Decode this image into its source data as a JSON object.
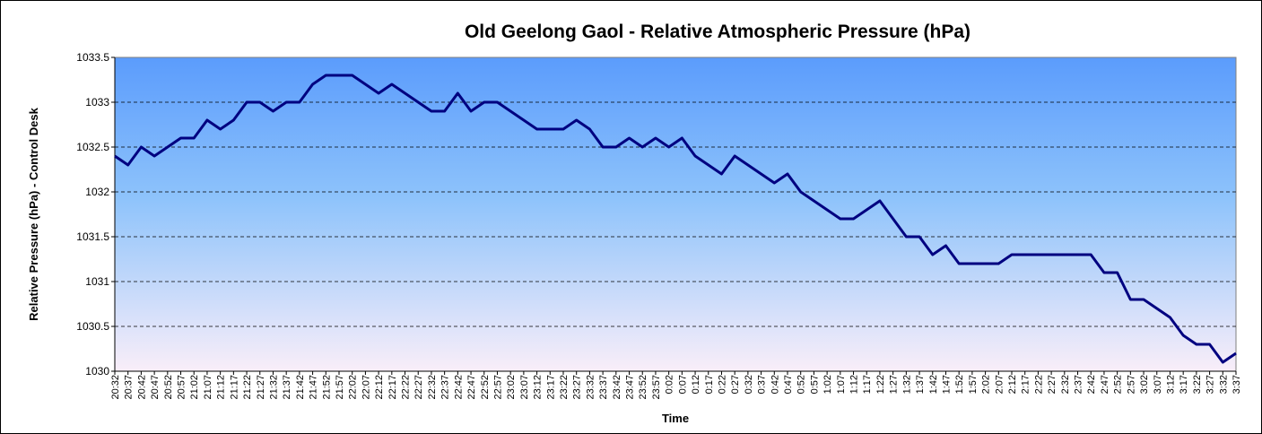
{
  "chart_data": {
    "type": "line",
    "title": "Old Geelong Gaol - Relative Atmospheric Pressure (hPa)",
    "x_label": "Time",
    "y_label": "Relative Pressure (hPa) - Control Desk",
    "categories": [
      "20:32",
      "20:37",
      "20:42",
      "20:47",
      "20:52",
      "20:57",
      "21:02",
      "21:07",
      "21:12",
      "21:17",
      "21:22",
      "21:27",
      "21:32",
      "21:37",
      "21:42",
      "21:47",
      "21:52",
      "21:57",
      "22:02",
      "22:07",
      "22:12",
      "22:17",
      "22:22",
      "22:27",
      "22:32",
      "22:37",
      "22:42",
      "22:47",
      "22:52",
      "22:57",
      "23:02",
      "23:07",
      "23:12",
      "23:17",
      "23:22",
      "23:27",
      "23:32",
      "23:37",
      "23:42",
      "23:47",
      "23:52",
      "23:57",
      "0:02",
      "0:07",
      "0:12",
      "0:17",
      "0:22",
      "0:27",
      "0:32",
      "0:37",
      "0:42",
      "0:47",
      "0:52",
      "0:57",
      "1:02",
      "1:07",
      "1:12",
      "1:17",
      "1:22",
      "1:27",
      "1:32",
      "1:37",
      "1:42",
      "1:47",
      "1:52",
      "1:57",
      "2:02",
      "2:07",
      "2:12",
      "2:17",
      "2:22",
      "2:27",
      "2:32",
      "2:37",
      "2:42",
      "2:47",
      "2:52",
      "2:57",
      "3:02",
      "3:07",
      "3:12",
      "3:17",
      "3:22",
      "3:27",
      "3:32",
      "3:37"
    ],
    "series": [
      {
        "name": "Relative Pressure (hPa) - Control Desk",
        "color": "#000080",
        "values": [
          1032.4,
          1032.3,
          1032.5,
          1032.4,
          1032.5,
          1032.6,
          1032.6,
          1032.8,
          1032.7,
          1032.8,
          1033.0,
          1033.0,
          1032.9,
          1033.0,
          1033.0,
          1033.2,
          1033.3,
          1033.3,
          1033.3,
          1033.2,
          1033.1,
          1033.2,
          1033.1,
          1033.0,
          1032.9,
          1032.9,
          1033.1,
          1032.9,
          1033.0,
          1033.0,
          1032.9,
          1032.8,
          1032.7,
          1032.7,
          1032.7,
          1032.8,
          1032.7,
          1032.5,
          1032.5,
          1032.6,
          1032.5,
          1032.6,
          1032.5,
          1032.6,
          1032.4,
          1032.3,
          1032.2,
          1032.4,
          1032.3,
          1032.2,
          1032.1,
          1032.2,
          1032.0,
          1031.9,
          1031.8,
          1031.7,
          1031.7,
          1031.8,
          1031.9,
          1031.7,
          1031.5,
          1031.5,
          1031.3,
          1031.4,
          1031.2,
          1031.2,
          1031.2,
          1031.2,
          1031.3,
          1031.3,
          1031.3,
          1031.3,
          1031.3,
          1031.3,
          1031.3,
          1031.1,
          1031.1,
          1030.8,
          1030.8,
          1030.7,
          1030.6,
          1030.4,
          1030.3,
          1030.3,
          1030.1,
          1030.2
        ]
      }
    ],
    "ylim": [
      1030,
      1033.5
    ],
    "yticks": [
      1030,
      1030.5,
      1031,
      1031.5,
      1032,
      1032.5,
      1033,
      1033.5
    ],
    "grid": true
  }
}
